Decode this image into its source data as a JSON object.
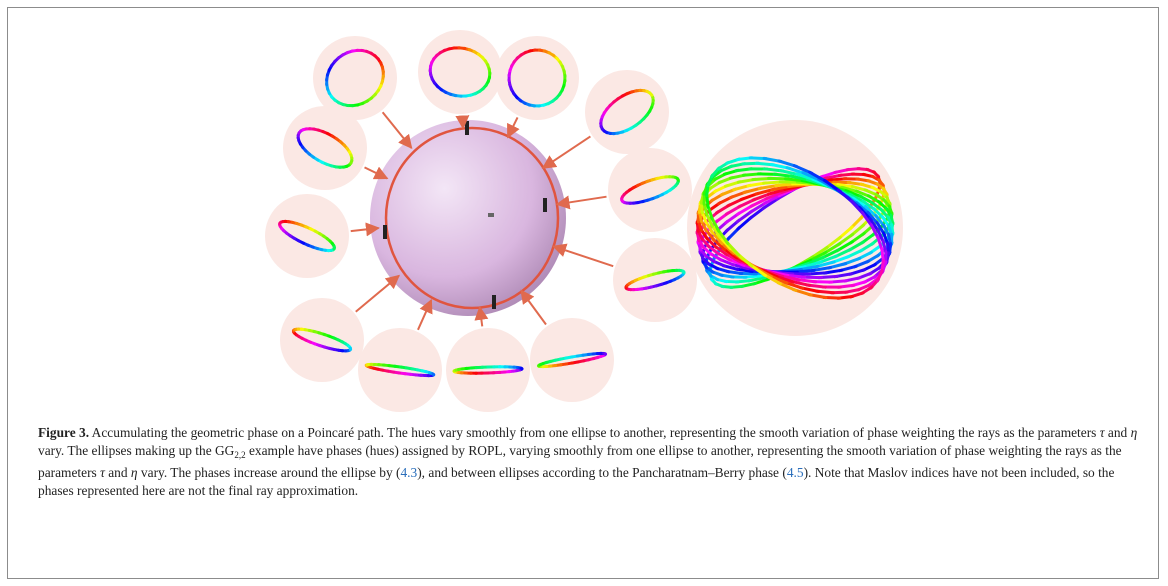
{
  "figure": {
    "label": "Figure 3.",
    "caption": [
      " Accumulating the geometric phase on a Poincaré path. The hues vary smoothly from one ellipse to another, representing the smooth variation of phase weighting the rays as the parameters ",
      "τ",
      " and ",
      "η",
      " vary. The ellipses making up the GG",
      "2,2",
      " example have phases (hues) assigned by ROPL, varying smoothly from one ellipse to another, representing the smooth variation of phase weighting the rays as the parameters ",
      "τ",
      " and ",
      "η",
      " vary. The phases increase around the ellipse by (",
      "4.3",
      "), and between ellipses according to the Pancharatnam–Berry phase (",
      "4.5",
      "). Note that Maslov indices have not been included, so the phases represented here are not the final ray approximation."
    ]
  }
}
